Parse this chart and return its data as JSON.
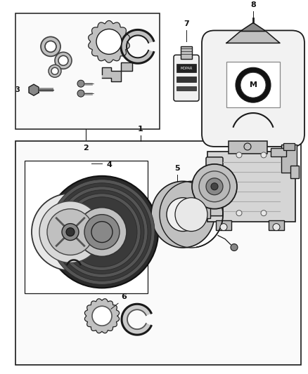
{
  "bg_color": "#ffffff",
  "fig_width": 4.38,
  "fig_height": 5.33,
  "line_color": "#1a1a1a",
  "text_color": "#111111",
  "gray_light": "#e8e8e8",
  "gray_mid": "#c0c0c0",
  "gray_dark": "#888888",
  "gray_very_dark": "#444444"
}
